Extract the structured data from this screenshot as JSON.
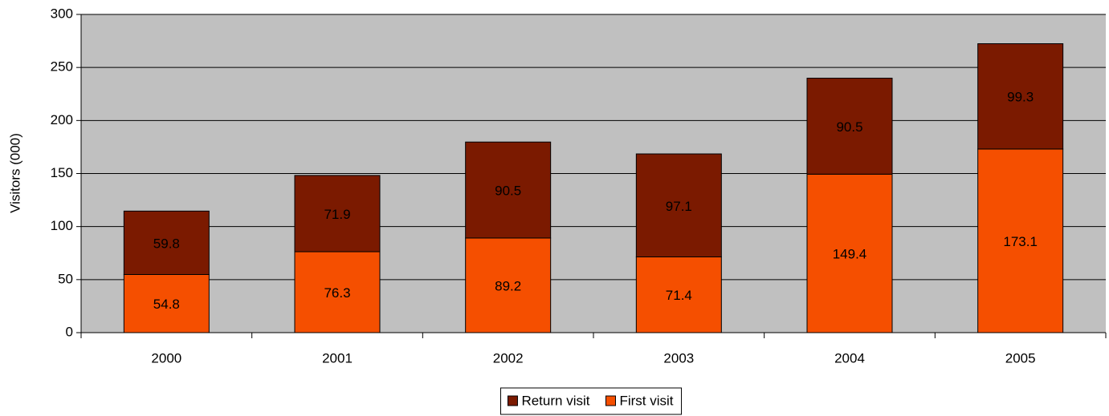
{
  "chart_data": {
    "type": "stacked_bar",
    "y_label": "Visitors (000)",
    "categories": [
      "2000",
      "2001",
      "2002",
      "2003",
      "2004",
      "2005"
    ],
    "series": [
      {
        "name": "First visit",
        "color": "#f54f00",
        "values": [
          54.8,
          76.3,
          89.2,
          71.4,
          149.4,
          173.1
        ]
      },
      {
        "name": "Return visit",
        "color": "#7b1a00",
        "values": [
          59.8,
          71.9,
          90.5,
          97.1,
          90.5,
          99.3
        ]
      }
    ],
    "ylim": [
      0,
      300
    ],
    "yticks": [
      0,
      50,
      100,
      150,
      200,
      250,
      300
    ],
    "grid": true,
    "legend": "bottom"
  }
}
